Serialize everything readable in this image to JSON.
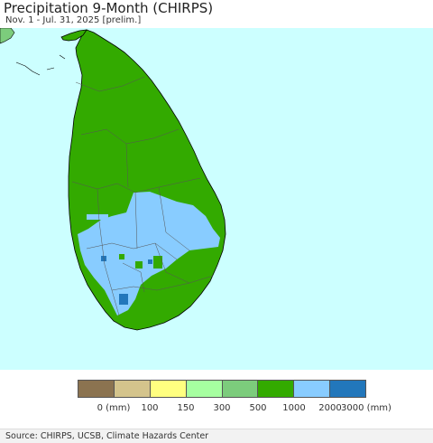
{
  "header": {
    "title": "Precipitation 9-Month (CHIRPS)",
    "subtitle": "Nov. 1 - Jul. 31, 2025 [prelim.]"
  },
  "legend": {
    "colors": [
      "#8b7350",
      "#d4c48c",
      "#ffff80",
      "#a6ffa0",
      "#7ccc7c",
      "#33aa00",
      "#88ccff",
      "#2277bb"
    ],
    "labels": [
      "0 (mm)",
      "100",
      "150",
      "300",
      "500",
      "1000",
      "2000",
      "3000 (mm)"
    ]
  },
  "map": {
    "ocean_color": "#ccffff",
    "india_color": "#7ccc7c",
    "dominant_class_color": "#33aa00",
    "wet_class_color": "#88ccff",
    "wettest_class_color": "#2277bb"
  },
  "footer": {
    "source": "Source: CHIRPS, UCSB, Climate Hazards Center"
  }
}
